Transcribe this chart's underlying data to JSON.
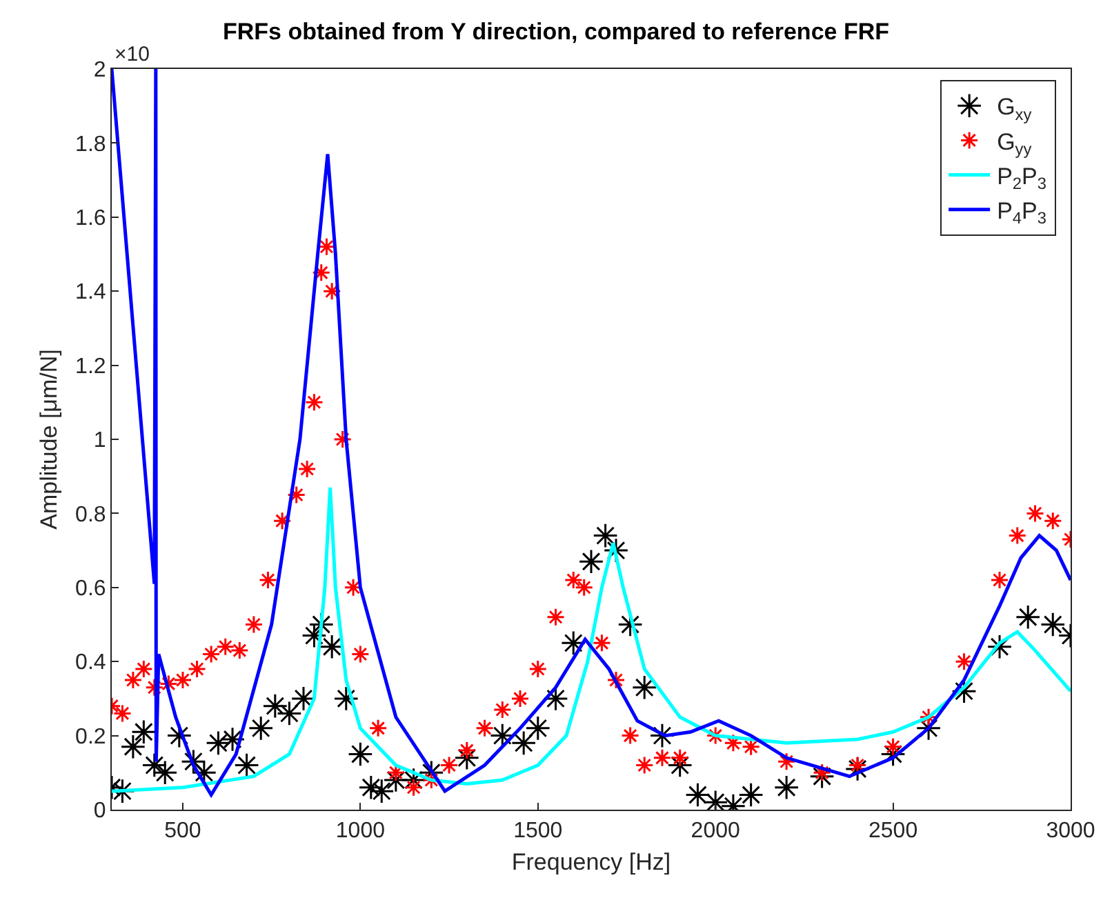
{
  "chart_data": {
    "type": "line",
    "title": "FRFs obtained from Y direction, compared to reference FRF",
    "xlabel": "Frequency [Hz]",
    "ylabel": "Amplitude [μm/N]",
    "annotations": [
      "×10"
    ],
    "xlim": [
      300,
      3000
    ],
    "xticks": [
      500,
      1000,
      1500,
      2000,
      2500,
      3000
    ],
    "ylim": [
      0,
      2
    ],
    "yticks": [
      0,
      0.2,
      0.4,
      0.6,
      0.8,
      1,
      1.2,
      1.4,
      1.6,
      1.8,
      2
    ],
    "legend": "top right",
    "series": [
      {
        "name": "G$_{xy}$",
        "type": "scatter",
        "marker": "cross",
        "color": "#000000",
        "x": [
          300,
          330,
          360,
          390,
          420,
          450,
          490,
          530,
          560,
          600,
          640,
          680,
          720,
          760,
          800,
          840,
          870,
          890,
          920,
          960,
          1000,
          1030,
          1060,
          1100,
          1150,
          1200,
          1300,
          1400,
          1460,
          1500,
          1550,
          1600,
          1650,
          1690,
          1720,
          1760,
          1800,
          1850,
          1900,
          1950,
          2000,
          2050,
          2100,
          2200,
          2300,
          2400,
          2500,
          2600,
          2700,
          2800,
          2880,
          2950,
          3000
        ],
        "values": [
          0.06,
          0.05,
          0.17,
          0.21,
          0.12,
          0.1,
          0.2,
          0.13,
          0.1,
          0.18,
          0.19,
          0.12,
          0.22,
          0.28,
          0.26,
          0.3,
          0.47,
          0.5,
          0.44,
          0.3,
          0.15,
          0.06,
          0.05,
          0.08,
          0.08,
          0.1,
          0.14,
          0.2,
          0.18,
          0.22,
          0.3,
          0.45,
          0.67,
          0.74,
          0.7,
          0.5,
          0.33,
          0.2,
          0.12,
          0.04,
          0.02,
          0.01,
          0.04,
          0.06,
          0.09,
          0.11,
          0.15,
          0.22,
          0.32,
          0.44,
          0.52,
          0.5,
          0.47
        ]
      },
      {
        "name": "G$_{yy}$",
        "type": "scatter",
        "marker": "cross",
        "color": "#ff0000",
        "x": [
          300,
          330,
          360,
          390,
          420,
          460,
          500,
          540,
          580,
          620,
          660,
          700,
          740,
          780,
          820,
          850,
          870,
          890,
          905,
          920,
          950,
          980,
          1000,
          1050,
          1100,
          1150,
          1200,
          1250,
          1300,
          1350,
          1400,
          1450,
          1500,
          1550,
          1600,
          1630,
          1680,
          1720,
          1760,
          1800,
          1850,
          1900,
          2000,
          2050,
          2100,
          2200,
          2300,
          2400,
          2500,
          2600,
          2700,
          2800,
          2850,
          2900,
          2950,
          3000
        ],
        "values": [
          0.28,
          0.26,
          0.35,
          0.38,
          0.33,
          0.34,
          0.35,
          0.38,
          0.42,
          0.44,
          0.43,
          0.5,
          0.62,
          0.78,
          0.85,
          0.92,
          1.1,
          1.45,
          1.52,
          1.4,
          1.0,
          0.6,
          0.42,
          0.22,
          0.1,
          0.06,
          0.08,
          0.12,
          0.16,
          0.22,
          0.27,
          0.3,
          0.38,
          0.52,
          0.62,
          0.6,
          0.45,
          0.35,
          0.2,
          0.12,
          0.14,
          0.14,
          0.2,
          0.18,
          0.17,
          0.13,
          0.1,
          0.12,
          0.17,
          0.25,
          0.4,
          0.62,
          0.74,
          0.8,
          0.78,
          0.73
        ]
      },
      {
        "name": "P$_{2}$P$_{3}$",
        "marker": "none",
        "line_style": "solid",
        "color": "#00ffff",
        "x": [
          300,
          500,
          700,
          800,
          870,
          900,
          915,
          930,
          960,
          1000,
          1100,
          1200,
          1300,
          1400,
          1500,
          1580,
          1640,
          1680,
          1712,
          1740,
          1800,
          1900,
          2000,
          2200,
          2400,
          2500,
          2600,
          2700,
          2800,
          2850,
          2900,
          3000
        ],
        "values": [
          0.05,
          0.06,
          0.09,
          0.15,
          0.3,
          0.6,
          0.87,
          0.6,
          0.35,
          0.22,
          0.12,
          0.08,
          0.07,
          0.08,
          0.12,
          0.2,
          0.4,
          0.6,
          0.72,
          0.6,
          0.38,
          0.25,
          0.2,
          0.18,
          0.19,
          0.21,
          0.25,
          0.33,
          0.45,
          0.48,
          0.43,
          0.32
        ]
      },
      {
        "name": "P$_{4}$P$_{3}$",
        "marker": "none",
        "line_style": "solid",
        "color": "#0000ff",
        "x": [
          300,
          420,
          424,
          425,
          432,
          480,
          530,
          580,
          650,
          750,
          830,
          880,
          908,
          930,
          960,
          1000,
          1100,
          1238,
          1350,
          1450,
          1550,
          1633,
          1700,
          1780,
          1858,
          1930,
          2009,
          2100,
          2200,
          2377,
          2500,
          2600,
          2700,
          2800,
          2860,
          2912,
          2960,
          3000
        ],
        "values": [
          2.0,
          0.61,
          2.0,
          0.13,
          0.42,
          0.25,
          0.12,
          0.04,
          0.15,
          0.5,
          1.0,
          1.5,
          1.77,
          1.5,
          1.0,
          0.6,
          0.25,
          0.05,
          0.12,
          0.22,
          0.33,
          0.46,
          0.38,
          0.24,
          0.2,
          0.21,
          0.24,
          0.2,
          0.14,
          0.09,
          0.14,
          0.22,
          0.35,
          0.55,
          0.68,
          0.74,
          0.7,
          0.62
        ]
      }
    ]
  }
}
